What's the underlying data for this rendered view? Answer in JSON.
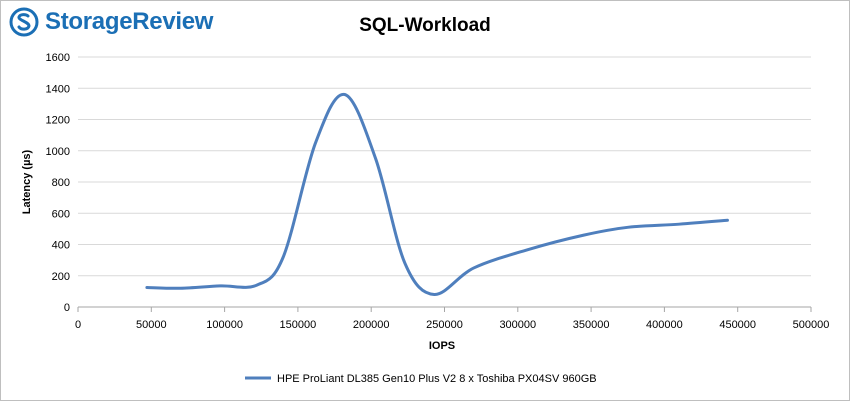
{
  "brand": {
    "name": "StorageReview",
    "accent": "#1b6fb5",
    "icon": "storagereview-logo-icon"
  },
  "chart_data": {
    "type": "line",
    "title": "SQL-Workload",
    "xlabel": "IOPS",
    "ylabel": "Latency (µs)",
    "xlim": [
      0,
      500000
    ],
    "ylim": [
      0,
      1600
    ],
    "xticks": [
      0,
      50000,
      100000,
      150000,
      200000,
      250000,
      300000,
      350000,
      400000,
      450000,
      500000
    ],
    "yticks": [
      0,
      200,
      400,
      600,
      800,
      1000,
      1200,
      1400,
      1600
    ],
    "grid": "horizontal",
    "legend_position": "bottom",
    "series": [
      {
        "name": "HPE ProLiant DL385 Gen10 Plus V2 8 x Toshiba PX04SV 960GB",
        "color": "#4f7fbd",
        "x": [
          47000,
          70000,
          97000,
          122000,
          140000,
          162000,
          182000,
          203000,
          223000,
          243000,
          270000,
          308000,
          345000,
          375000,
          410000,
          443000
        ],
        "y": [
          125,
          120,
          135,
          140,
          320,
          1050,
          1360,
          950,
          280,
          80,
          250,
          370,
          460,
          510,
          530,
          555
        ]
      }
    ]
  }
}
